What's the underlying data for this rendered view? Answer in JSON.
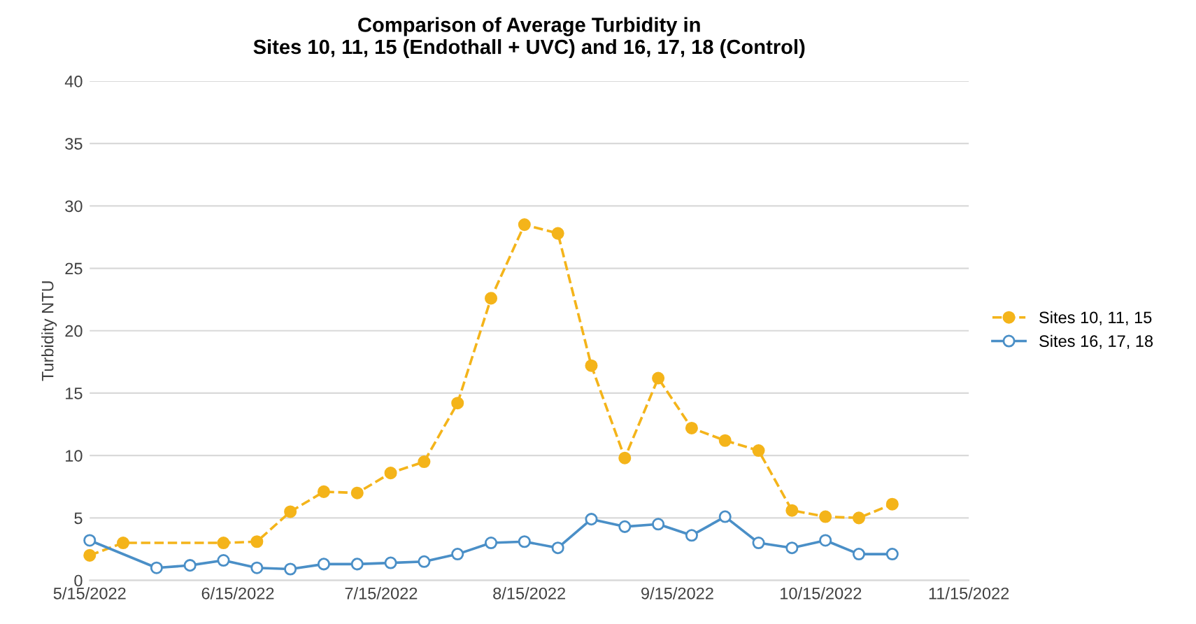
{
  "chart_data": {
    "type": "line",
    "title": "Comparison of Average Turbidity in\nSites 10, 11, 15 (Endothall + UVC) and 16, 17, 18 (Control)",
    "ylabel": "Turbidity NTU",
    "series": [
      {
        "name": "Sites 10, 11, 15",
        "color": "#f4b41a",
        "marker": "circle",
        "line_style": "dashed",
        "x": [
          "2022-05-15",
          "2022-05-22",
          "2022-06-12",
          "2022-06-19",
          "2022-06-26",
          "2022-07-03",
          "2022-07-10",
          "2022-07-17",
          "2022-07-24",
          "2022-07-31",
          "2022-08-07",
          "2022-08-14",
          "2022-08-21",
          "2022-08-28",
          "2022-09-04",
          "2022-09-11",
          "2022-09-18",
          "2022-09-25",
          "2022-10-02",
          "2022-10-09",
          "2022-10-16",
          "2022-10-23",
          "2022-10-30"
        ],
        "values": [
          2,
          3,
          3,
          3.1,
          5.5,
          7.1,
          7,
          8.6,
          9.5,
          14.2,
          22.6,
          28.5,
          27.8,
          17.2,
          9.8,
          16.2,
          12.2,
          11.2,
          10.4,
          5.6,
          5.1,
          5,
          6.1
        ]
      },
      {
        "name": "Sites 16, 17, 18",
        "color": "#4a8fc7",
        "marker": "circle",
        "line_style": "solid",
        "x": [
          "2022-05-15",
          "2022-05-29",
          "2022-06-05",
          "2022-06-12",
          "2022-06-19",
          "2022-06-26",
          "2022-07-03",
          "2022-07-10",
          "2022-07-17",
          "2022-07-24",
          "2022-07-31",
          "2022-08-07",
          "2022-08-14",
          "2022-08-21",
          "2022-08-28",
          "2022-09-04",
          "2022-09-11",
          "2022-09-18",
          "2022-09-25",
          "2022-10-02",
          "2022-10-09",
          "2022-10-16",
          "2022-10-23",
          "2022-10-30"
        ],
        "values": [
          3.2,
          1,
          1.2,
          1.6,
          1,
          0.9,
          1.3,
          1.3,
          1.4,
          1.5,
          2.1,
          3,
          3.1,
          2.6,
          4.9,
          4.3,
          4.5,
          3.6,
          5.1,
          3,
          2.6,
          3.2,
          2.1,
          2.1
        ]
      }
    ],
    "xlim": [
      "2022-05-15",
      "2022-11-15"
    ],
    "xticks": [
      {
        "value": "2022-05-15",
        "label": "5/15/2022"
      },
      {
        "value": "2022-06-15",
        "label": "6/15/2022"
      },
      {
        "value": "2022-07-15",
        "label": "7/15/2022"
      },
      {
        "value": "2022-08-15",
        "label": "8/15/2022"
      },
      {
        "value": "2022-09-15",
        "label": "9/15/2022"
      },
      {
        "value": "2022-10-15",
        "label": "10/15/2022"
      },
      {
        "value": "2022-11-15",
        "label": "11/15/2022"
      }
    ],
    "ylim": [
      0,
      40
    ],
    "yticks": [
      0,
      5,
      10,
      15,
      20,
      25,
      30,
      35,
      40
    ],
    "grid": "y",
    "legend": "right"
  }
}
